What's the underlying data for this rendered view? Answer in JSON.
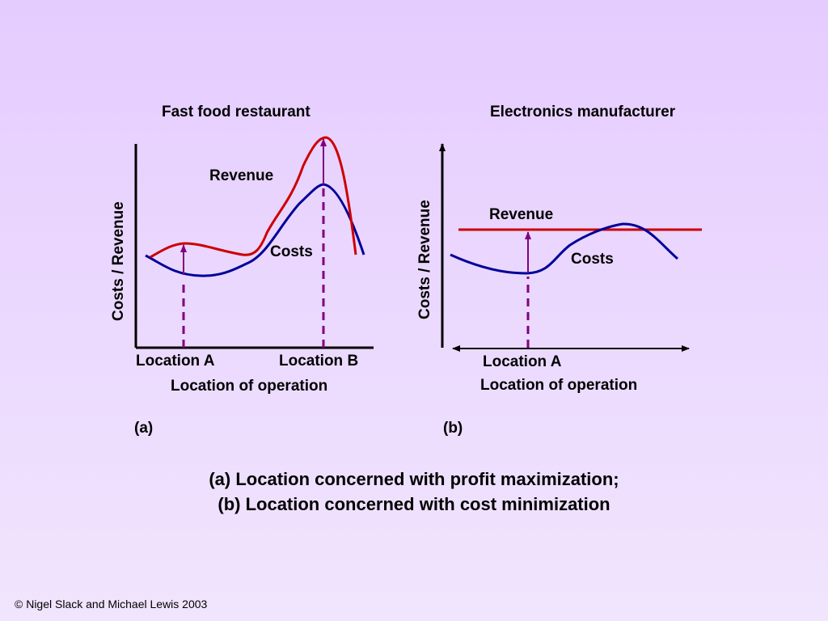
{
  "panel_a": {
    "title": "Fast food restaurant",
    "y_axis_label": "Costs / Revenue",
    "x_axis_label": "Location of operation",
    "revenue_label": "Revenue",
    "costs_label": "Costs",
    "location_a": "Location A",
    "location_b": "Location B",
    "tag": "(a)"
  },
  "panel_b": {
    "title": "Electronics manufacturer",
    "y_axis_label": "Costs / Revenue",
    "x_axis_label": "Location of operation",
    "revenue_label": "Revenue",
    "costs_label": "Costs",
    "location_a": "Location A",
    "tag": "(b)"
  },
  "caption": {
    "line1": "(a) Location concerned with profit maximization;",
    "line2": "(b) Location concerned with cost minimization"
  },
  "copyright": "© Nigel Slack and Michael Lewis 2003",
  "colors": {
    "revenue": "#cc0000",
    "costs": "#000099",
    "marker": "#800080",
    "axis": "#000000"
  }
}
